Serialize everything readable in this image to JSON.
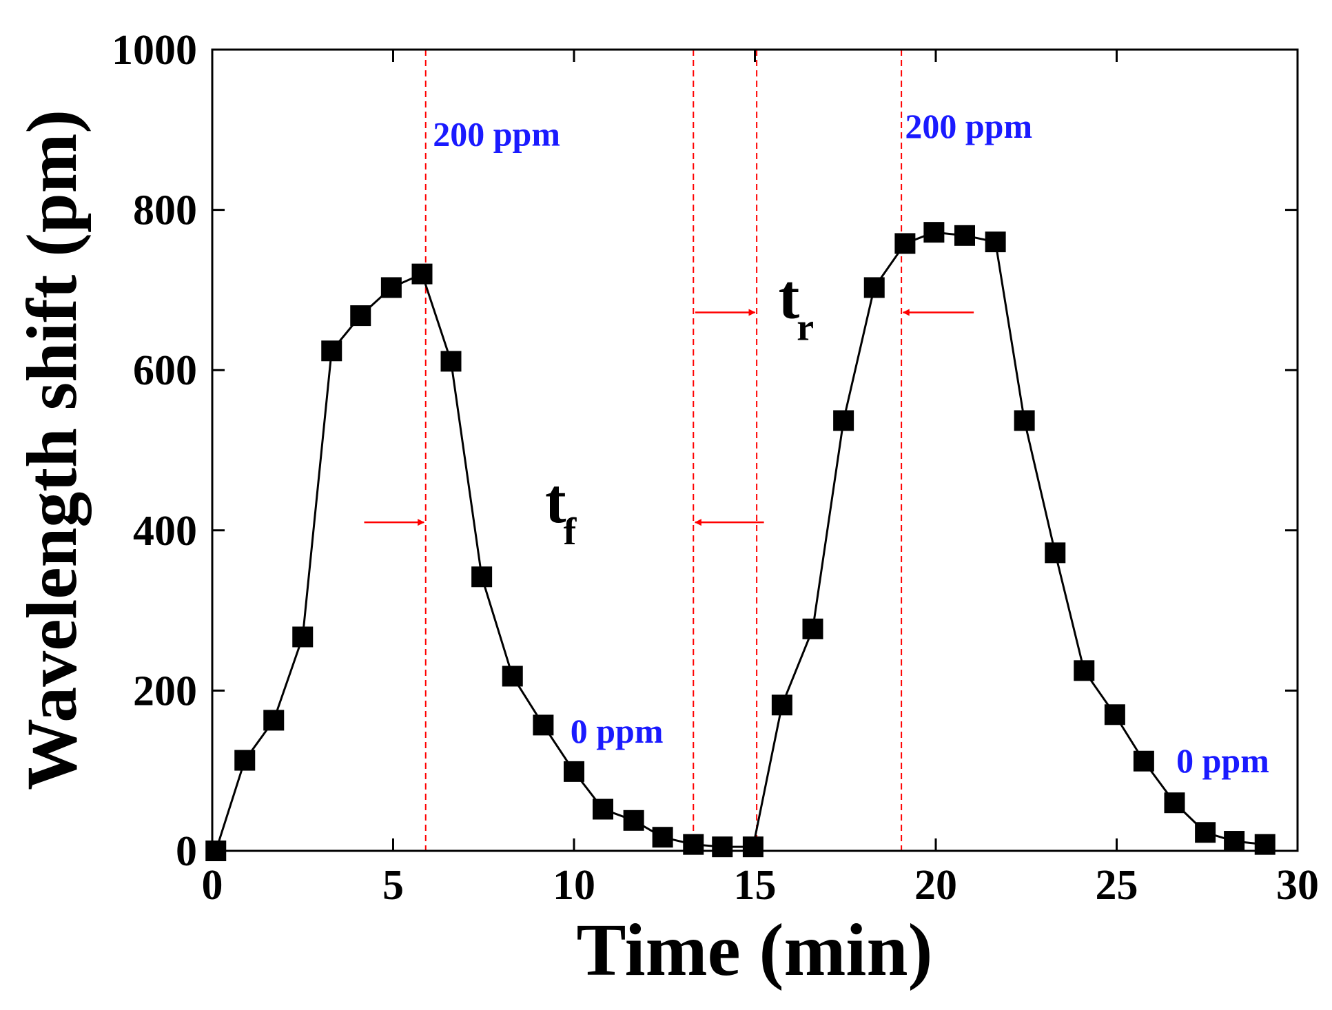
{
  "chart_data": {
    "type": "line",
    "title": "",
    "xlabel": "Time (min)",
    "ylabel": "Wavelength shift (pm)",
    "xlim": [
      0,
      30
    ],
    "ylim": [
      0,
      1000
    ],
    "xticks": [
      0,
      5,
      10,
      15,
      20,
      25,
      30
    ],
    "yticks": [
      0,
      200,
      400,
      600,
      800,
      1000
    ],
    "grid": false,
    "marker": "square",
    "line_color": "#000000",
    "marker_color": "#000000",
    "series": [
      {
        "name": "Wavelength shift",
        "x": [
          0.1,
          0.9,
          1.7,
          2.5,
          3.3,
          4.1,
          4.95,
          5.8,
          6.6,
          7.45,
          8.3,
          9.15,
          10.0,
          10.8,
          11.65,
          12.45,
          13.3,
          14.1,
          14.95,
          15.75,
          16.6,
          17.45,
          18.3,
          19.15,
          19.95,
          20.8,
          21.65,
          22.45,
          23.3,
          24.1,
          24.95,
          25.75,
          26.6,
          27.45,
          28.25,
          29.1
        ],
        "y": [
          0,
          113,
          163,
          267,
          624,
          668,
          703,
          720,
          611,
          342,
          218,
          157,
          99,
          52,
          38,
          17,
          8,
          5,
          5,
          182,
          277,
          537,
          703,
          758,
          772,
          768,
          760,
          537,
          372,
          225,
          170,
          112,
          60,
          23,
          12,
          8
        ]
      }
    ],
    "vlines": {
      "x": [
        5.9,
        13.3,
        15.05,
        19.05
      ],
      "color": "#ff0000",
      "style": "dashed"
    },
    "annotations": {
      "ppm_labels": [
        {
          "text": "200 ppm",
          "x": 6.1,
          "y": 880
        },
        {
          "text": "200 ppm",
          "x": 19.15,
          "y": 890
        },
        {
          "text": "0 ppm",
          "x": 9.9,
          "y": 135
        },
        {
          "text": "0 ppm",
          "x": 26.65,
          "y": 98
        }
      ],
      "tf": {
        "main": "t",
        "sub": "f",
        "x": 9.2,
        "y": 410
      },
      "tr": {
        "main": "t",
        "sub": "r",
        "x": 15.65,
        "y": 665
      },
      "arrows": [
        {
          "from": [
            4.2,
            410
          ],
          "to": [
            5.85,
            410
          ]
        },
        {
          "from": [
            15.25,
            410
          ],
          "to": [
            13.35,
            410
          ]
        },
        {
          "from": [
            13.35,
            672
          ],
          "to": [
            15.0,
            672
          ]
        },
        {
          "from": [
            21.05,
            672
          ],
          "to": [
            19.1,
            672
          ]
        }
      ],
      "arrow_color": "#ff0000"
    }
  }
}
